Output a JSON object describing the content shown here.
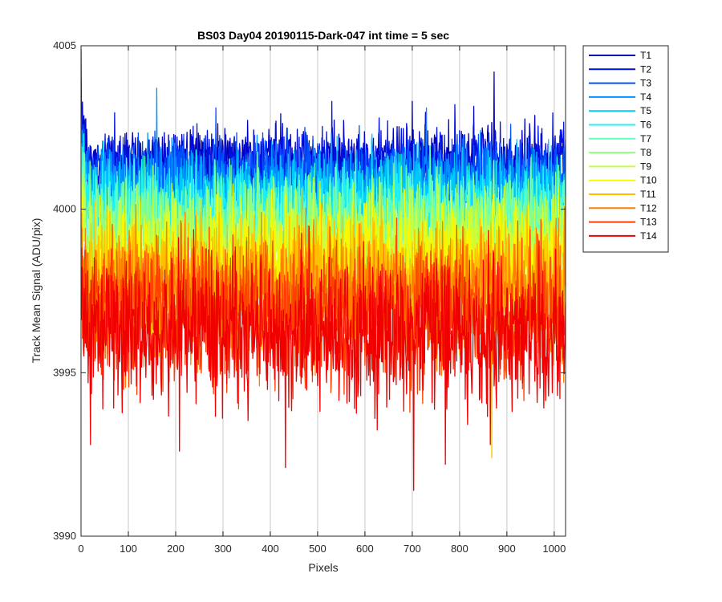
{
  "chart_data": {
    "type": "line",
    "title": "BS03 Day04 20190115-Dark-047 int time = 5 sec",
    "xlabel": "Pixels",
    "ylabel": "Track Mean Signal (ADU/pix)",
    "xlim": [
      0,
      1024
    ],
    "ylim": [
      3990,
      4005
    ],
    "xticks": [
      0,
      100,
      200,
      300,
      400,
      500,
      600,
      700,
      800,
      900,
      1000
    ],
    "yticks": [
      3990,
      3995,
      4000,
      4005
    ],
    "x_grid": true,
    "y_grid": false,
    "legend_position": "outside-top-right",
    "series": [
      {
        "name": "T1",
        "color": "#0000b8",
        "mean": 4001.5,
        "spread": 0.55,
        "extremes": [
          [
            0,
            4004.9
          ],
          [
            873,
            4004.2
          ],
          [
            700,
            4003.3
          ]
        ]
      },
      {
        "name": "T2",
        "color": "#0011e0",
        "mean": 4001.3,
        "spread": 0.6,
        "extremes": [
          [
            530,
            4003.3
          ],
          [
            790,
            4003.2
          ]
        ]
      },
      {
        "name": "T3",
        "color": "#0050ff",
        "mean": 4001.0,
        "spread": 0.65,
        "extremes": [
          [
            285,
            4003.1
          ]
        ]
      },
      {
        "name": "T4",
        "color": "#0090ff",
        "mean": 4000.6,
        "spread": 0.7,
        "extremes": [
          [
            160,
            4003.7
          ],
          [
            730,
            4003.1
          ]
        ]
      },
      {
        "name": "T5",
        "color": "#00c8ff",
        "mean": 4000.3,
        "spread": 0.75,
        "extremes": []
      },
      {
        "name": "T6",
        "color": "#20f0f0",
        "mean": 3999.9,
        "spread": 0.8,
        "extremes": []
      },
      {
        "name": "T7",
        "color": "#60ffc0",
        "mean": 3999.6,
        "spread": 0.85,
        "extremes": []
      },
      {
        "name": "T8",
        "color": "#90ff80",
        "mean": 3999.2,
        "spread": 0.9,
        "extremes": []
      },
      {
        "name": "T9",
        "color": "#c8ff40",
        "mean": 3998.8,
        "spread": 0.95,
        "extremes": []
      },
      {
        "name": "T10",
        "color": "#f8f800",
        "mean": 3998.4,
        "spread": 1.0,
        "extremes": []
      },
      {
        "name": "T11",
        "color": "#ffc000",
        "mean": 3997.9,
        "spread": 1.05,
        "extremes": [
          [
            868,
            3992.4
          ]
        ]
      },
      {
        "name": "T12",
        "color": "#ff8000",
        "mean": 3997.4,
        "spread": 1.1,
        "extremes": []
      },
      {
        "name": "T13",
        "color": "#ff4000",
        "mean": 3996.8,
        "spread": 1.15,
        "extremes": []
      },
      {
        "name": "T14",
        "color": "#f00000",
        "mean": 3996.2,
        "spread": 1.2,
        "extremes": [
          [
            20,
            3992.8
          ],
          [
            208,
            3992.6
          ],
          [
            432,
            3992.1
          ],
          [
            703,
            3991.4
          ],
          [
            770,
            3992.2
          ],
          [
            865,
            3992.8
          ]
        ]
      }
    ]
  }
}
